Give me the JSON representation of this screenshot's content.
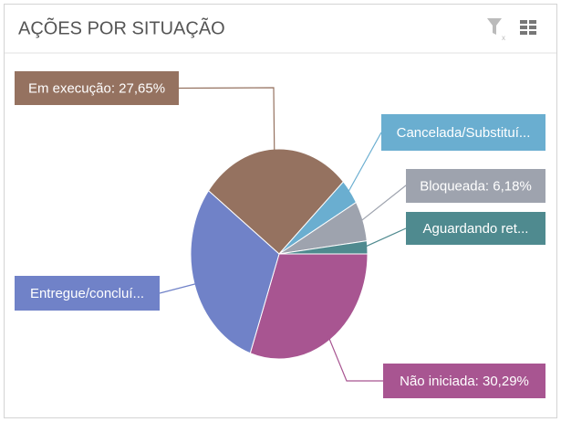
{
  "chart_data": {
    "type": "pie",
    "title": "AÇÕES POR SITUAÇÃO",
    "categories": [
      "Em execução: 27,65%",
      "Cancelada/Substituí...",
      "Bloqueada: 6,18%",
      "Aguardando ret...",
      "Não iniciada: 30,29%",
      "Entregue/concluí..."
    ],
    "values": [
      27.65,
      3.9,
      6.18,
      2.0,
      30.29,
      29.98
    ],
    "colors": [
      "#957260",
      "#6aaed0",
      "#9ea3ae",
      "#4f8a8f",
      "#a85591",
      "#7082c8"
    ]
  }
}
